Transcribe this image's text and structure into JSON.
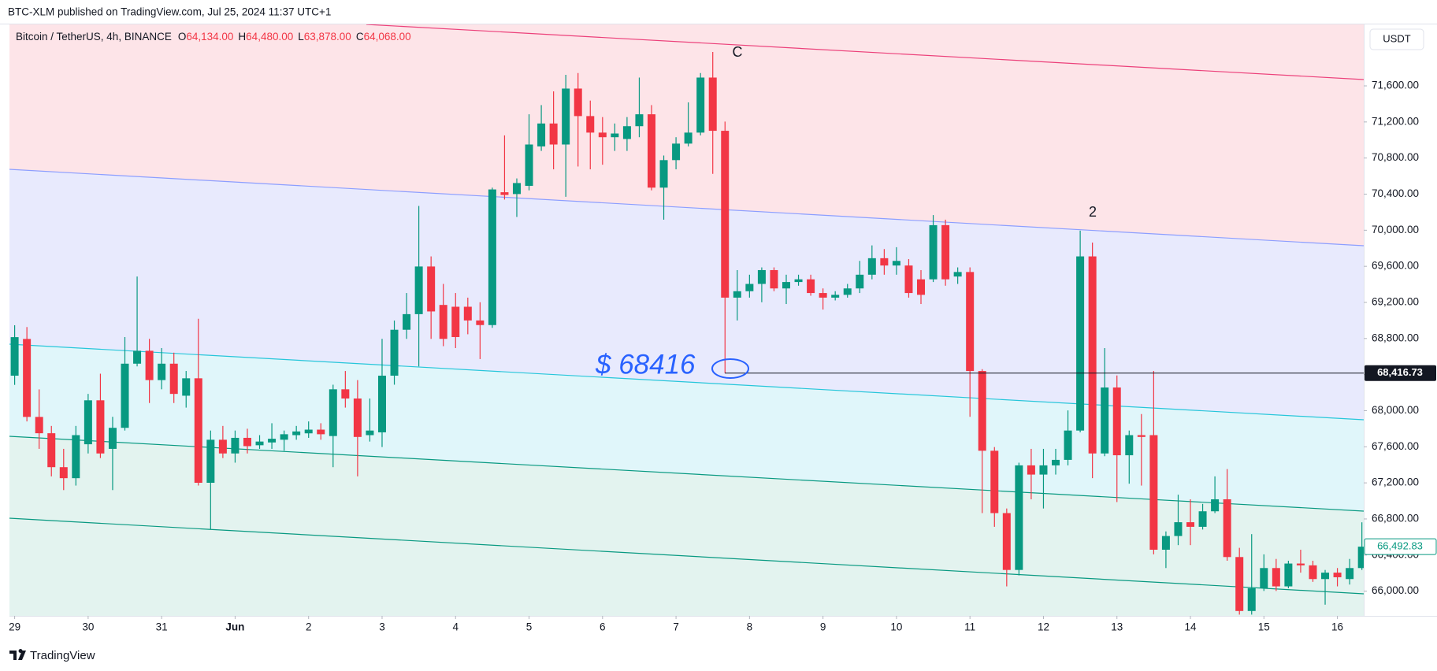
{
  "header": {
    "published": "BTC-XLM published on TradingView.com, Jul 25, 2024 11:37 UTC+1",
    "footer": "TradingView"
  },
  "chart_data": {
    "type": "candlestick",
    "title": "Bitcoin / TetherUS, 4h, BINANCE",
    "ohlc_legend": [
      {
        "key": "O",
        "value": "64,134.00"
      },
      {
        "key": "H",
        "value": "64,480.00"
      },
      {
        "key": "L",
        "value": "63,878.00"
      },
      {
        "key": "C",
        "value": "64,068.00"
      }
    ],
    "currency": "USDT",
    "up_color": "#089981",
    "down_color": "#f23645",
    "categories": [
      "29",
      null,
      null,
      null,
      null,
      null,
      "30",
      null,
      null,
      null,
      null,
      null,
      "31",
      null,
      null,
      null,
      null,
      null,
      "Jun",
      null,
      null,
      null,
      null,
      null,
      "2",
      null,
      null,
      null,
      null,
      null,
      "3",
      null,
      null,
      null,
      null,
      null,
      "4",
      null,
      null,
      null,
      null,
      null,
      "5",
      null,
      null,
      null,
      null,
      null,
      "6",
      null,
      null,
      null,
      null,
      null,
      "7",
      null,
      null,
      null,
      null,
      null,
      "8",
      null,
      null,
      null,
      null,
      null,
      "9",
      null,
      null,
      null,
      null,
      null,
      "10",
      null,
      null,
      null,
      null,
      null,
      "11",
      null,
      null,
      null,
      null,
      null,
      "12",
      null,
      null,
      null,
      null,
      null,
      "13",
      null,
      null,
      null,
      null,
      null,
      "14",
      null,
      null,
      null,
      null,
      null,
      "15",
      null,
      null,
      null,
      null,
      null,
      "16",
      null,
      null
    ],
    "open": [
      68388,
      68795,
      67931,
      67750,
      67374,
      67252,
      67628,
      68115,
      67577,
      67810,
      68521,
      68664,
      68339,
      68521,
      68166,
      68359,
      67201,
      67678,
      67526,
      67699,
      67617,
      67648,
      67678,
      67729,
      67749,
      67790,
      67719,
      68237,
      68135,
      67729,
      67760,
      68388,
      68897,
      69070,
      69598,
      69172,
      69152,
      69152,
      69000,
      68949,
      70421,
      70401,
      70492,
      70929,
      71183,
      70950,
      71570,
      71265,
      71082,
      71031,
      71011,
      71153,
      71285,
      70472,
      70777,
      70960,
      71082,
      71692,
      71102,
      69253,
      69324,
      69405,
      69558,
      69355,
      69426,
      69456,
      69304,
      69253,
      69284,
      69355,
      69507,
      69690,
      69609,
      69609,
      69456,
      69456,
      70056,
      69487,
      69537,
      68440,
      67556,
      66865,
      66235,
      67394,
      67292,
      67394,
      67455,
      67780,
      69710,
      67526,
      68257,
      67506,
      67729,
      67729,
      66459,
      66611,
      66764,
      66713,
      66885,
      67018,
      66378,
      65780,
      66032,
      66256,
      66053,
      66306,
      66286,
      66134,
      66205,
      66134,
      66256
    ],
    "high": [
      68947,
      68927,
      68236,
      67831,
      67577,
      67831,
      68186,
      68410,
      67932,
      68816,
      69487,
      68796,
      68694,
      68643,
      68440,
      69019,
      67780,
      67831,
      67780,
      67800,
      67729,
      67861,
      67780,
      67831,
      67881,
      67861,
      68288,
      68440,
      68339,
      68135,
      68796,
      68999,
      69304,
      70269,
      69710,
      69405,
      69304,
      69253,
      69202,
      70472,
      71051,
      70574,
      71285,
      71387,
      71539,
      71722,
      71742,
      71437,
      71254,
      71183,
      71254,
      71692,
      71387,
      70828,
      71031,
      71417,
      71742,
      71976,
      71204,
      69558,
      69507,
      69588,
      69588,
      69507,
      69507,
      69507,
      69355,
      69324,
      69405,
      69660,
      69832,
      69791,
      69812,
      69680,
      69558,
      70168,
      70117,
      69588,
      69588,
      68460,
      67597,
      66916,
      67424,
      67577,
      67577,
      67577,
      68003,
      69995,
      69863,
      68694,
      68390,
      67780,
      67963,
      68440,
      66662,
      67069,
      67018,
      66967,
      67272,
      67353,
      66480,
      66632,
      66408,
      66357,
      66337,
      66459,
      66337,
      66235,
      66256,
      66357,
      66763
    ],
    "low": [
      68286,
      67881,
      67577,
      67272,
      67120,
      67170,
      67526,
      67475,
      67120,
      67780,
      68491,
      68085,
      68237,
      68085,
      68034,
      67170,
      66682,
      67475,
      67424,
      67526,
      67577,
      67577,
      67556,
      67678,
      67699,
      67678,
      67374,
      68034,
      67272,
      67658,
      67597,
      68288,
      68796,
      68491,
      68796,
      68715,
      68694,
      68847,
      68572,
      68918,
      70340,
      70147,
      70442,
      70879,
      70675,
      70371,
      70706,
      70675,
      70726,
      70879,
      70879,
      71031,
      70442,
      70117,
      70675,
      70929,
      71051,
      70625,
      68416,
      69000,
      69253,
      69202,
      69324,
      69182,
      69385,
      69274,
      69121,
      69222,
      69253,
      69304,
      69456,
      69507,
      69507,
      69253,
      69182,
      69426,
      69385,
      69405,
      67932,
      66865,
      66713,
      66053,
      66174,
      67018,
      66916,
      67292,
      67394,
      67760,
      67252,
      67496,
      66987,
      67191,
      67170,
      66408,
      66256,
      66510,
      66510,
      66683,
      66865,
      66337,
      65740,
      65740,
      66002,
      66002,
      66032,
      66205,
      66103,
      65850,
      66053,
      66073,
      66235
    ],
    "close": [
      68815,
      67931,
      67750,
      67374,
      67252,
      67729,
      68115,
      67526,
      67810,
      68521,
      68664,
      68339,
      68521,
      68186,
      68359,
      67201,
      67678,
      67526,
      67699,
      67607,
      67658,
      67689,
      67739,
      67770,
      67790,
      67739,
      68237,
      68135,
      67709,
      67780,
      68388,
      68897,
      69070,
      69598,
      69100,
      68796,
      68816,
      69000,
      68949,
      70452,
      70391,
      70523,
      70950,
      71183,
      70950,
      71570,
      71265,
      71082,
      71031,
      71072,
      71153,
      71285,
      70472,
      70777,
      70960,
      71082,
      71692,
      71102,
      69253,
      69324,
      69405,
      69558,
      69355,
      69426,
      69456,
      69304,
      69253,
      69284,
      69355,
      69507,
      69690,
      69609,
      69660,
      69304,
      69284,
      70056,
      69456,
      69537,
      68440,
      67556,
      66865,
      66235,
      67394,
      67292,
      67394,
      67455,
      67780,
      69710,
      67526,
      68257,
      67506,
      67729,
      67709,
      66459,
      66611,
      66764,
      66713,
      66885,
      67018,
      66378,
      65780,
      66032,
      66256,
      66053,
      66306,
      66286,
      66134,
      66205,
      66154,
      66256,
      66492.83
    ],
    "ylim": [
      65726,
      72281
    ],
    "yticks": [
      {
        "value": 66000,
        "label": "66,000.00"
      },
      {
        "value": 66400,
        "label": "66,400.00"
      },
      {
        "value": 66800,
        "label": "66,800.00"
      },
      {
        "value": 67200,
        "label": "67,200.00"
      },
      {
        "value": 67600,
        "label": "67,600.00"
      },
      {
        "value": 68000,
        "label": "68,000.00"
      },
      {
        "value": 68400,
        "label": "68,400.00"
      },
      {
        "value": 68800,
        "label": "68,800.00"
      },
      {
        "value": 69200,
        "label": "69,200.00"
      },
      {
        "value": 69600,
        "label": "69,600.00"
      },
      {
        "value": 70000,
        "label": "70,000.00"
      },
      {
        "value": 70400,
        "label": "70,400.00"
      },
      {
        "value": 70800,
        "label": "70,800.00"
      },
      {
        "value": 71200,
        "label": "71,200.00"
      },
      {
        "value": 71600,
        "label": "71,600.00"
      }
    ],
    "horizontal_line": {
      "value": 68416.73,
      "label": "68,416.73"
    },
    "last_price": {
      "value": 66492.83,
      "label": "66,492.83"
    },
    "annotations": {
      "price_note": "$ 68416",
      "wave_c": "C",
      "wave_2": "2"
    }
  }
}
